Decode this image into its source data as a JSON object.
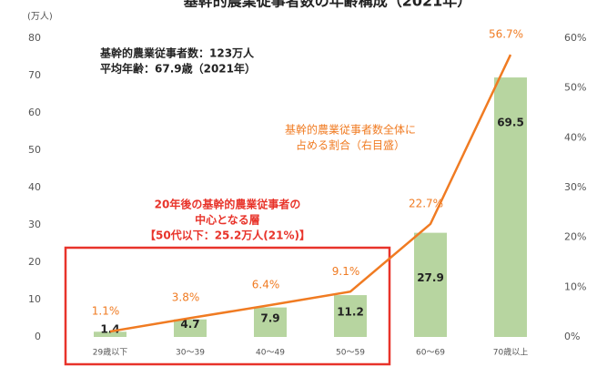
{
  "chart_data": {
    "type": "bar",
    "title": "基幹的農業従事者数の年齢構成（2021年）",
    "y_label": "(万人)",
    "categories": [
      "29歳以下",
      "30～39",
      "40～49",
      "50～59",
      "60～69",
      "70歳以上"
    ],
    "series": [
      {
        "name": "基幹的農業従事者数",
        "color": "#b7d5a0",
        "values": [
          1.4,
          4.7,
          7.9,
          11.2,
          27.9,
          69.5
        ]
      },
      {
        "name": "基幹的農業従事者数全体に占める割合（右目盛）",
        "color": "#f07b22",
        "axis": "y2",
        "type": "line",
        "values": [
          1.1,
          3.8,
          6.4,
          9.1,
          22.7,
          56.7
        ],
        "value_labels": [
          "1.1%",
          "3.8%",
          "6.4%",
          "9.1%",
          "22.7%",
          "56.7%"
        ]
      }
    ],
    "ylim": [
      0,
      80
    ],
    "yticks": [
      0,
      10,
      20,
      30,
      40,
      50,
      60,
      70,
      80
    ],
    "y2lim": [
      0,
      60
    ],
    "y2ticks": [
      {
        "value": 0,
        "label": "0%"
      },
      {
        "value": 10,
        "label": "10%"
      },
      {
        "value": 20,
        "label": "20%"
      },
      {
        "value": 30,
        "label": "30%"
      },
      {
        "value": 40,
        "label": "40%"
      },
      {
        "value": 50,
        "label": "50%"
      },
      {
        "value": 60,
        "label": "60%"
      }
    ],
    "annotations": [
      "基幹的農業従事者数：123万人",
      "平均年齢：67.9歳（2021年）",
      "基幹的農業従事者数全体に",
      "占める割合（右目盛）",
      "20年後の基幹的農業従事者の",
      "中心となる層",
      "【50代以下：25.2万人(21%)】"
    ]
  }
}
